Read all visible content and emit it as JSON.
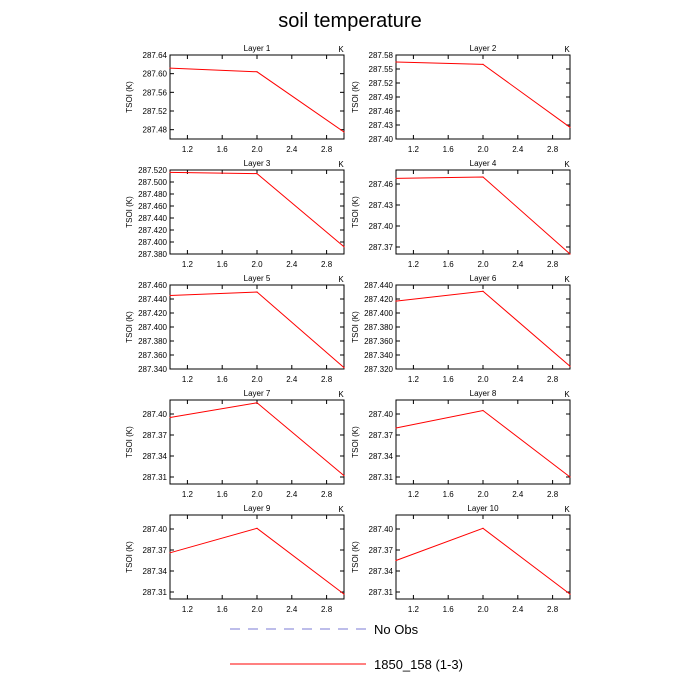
{
  "figure": {
    "title": "soil temperature",
    "colors": {
      "model": "#ff0000",
      "obs": "#7b7bd6",
      "axis": "#000000"
    }
  },
  "legend": {
    "entries": [
      {
        "label": "No Obs",
        "style": "dashed",
        "color": "#7b7bd6"
      },
      {
        "label": "1850_158 (1-3)",
        "style": "solid",
        "color": "#ff0000"
      }
    ]
  },
  "chart_data": [
    {
      "type": "line",
      "title": "Layer 1",
      "ylabel": "TSOI  (K)",
      "unit": "K",
      "x": [
        1,
        2,
        3
      ],
      "xlim": [
        1,
        3
      ],
      "xticks": [
        "1.2",
        "1.6",
        "2.0",
        "2.4",
        "2.8"
      ],
      "ylim": [
        287.46,
        287.64
      ],
      "yticks": [
        "287.48",
        "287.52",
        "287.56",
        "287.60",
        "287.64"
      ],
      "series": [
        {
          "values": [
            287.612,
            287.604,
            287.475
          ]
        }
      ]
    },
    {
      "type": "line",
      "title": "Layer 2",
      "ylabel": "TSOI  (K)",
      "unit": "K",
      "x": [
        1,
        2,
        3
      ],
      "xlim": [
        1,
        3
      ],
      "xticks": [
        "1.2",
        "1.6",
        "2.0",
        "2.4",
        "2.8"
      ],
      "ylim": [
        287.4,
        287.58
      ],
      "yticks": [
        "287.40",
        "287.43",
        "287.46",
        "287.49",
        "287.52",
        "287.55",
        "287.58"
      ],
      "series": [
        {
          "values": [
            287.565,
            287.56,
            287.425
          ]
        }
      ]
    },
    {
      "type": "line",
      "title": "Layer 3",
      "ylabel": "TSOI  (K)",
      "unit": "K",
      "x": [
        1,
        2,
        3
      ],
      "xlim": [
        1,
        3
      ],
      "xticks": [
        "1.2",
        "1.6",
        "2.0",
        "2.4",
        "2.8"
      ],
      "ylim": [
        287.38,
        287.52
      ],
      "yticks": [
        "287.380",
        "287.400",
        "287.420",
        "287.440",
        "287.460",
        "287.480",
        "287.500",
        "287.520"
      ],
      "series": [
        {
          "values": [
            287.516,
            287.514,
            287.392
          ]
        }
      ]
    },
    {
      "type": "line",
      "title": "Layer 4",
      "ylabel": "TSOI  (K)",
      "unit": "K",
      "x": [
        1,
        2,
        3
      ],
      "xlim": [
        1,
        3
      ],
      "xticks": [
        "1.2",
        "1.6",
        "2.0",
        "2.4",
        "2.8"
      ],
      "ylim": [
        287.36,
        287.48
      ],
      "yticks": [
        "287.37",
        "287.40",
        "287.43",
        "287.46"
      ],
      "series": [
        {
          "values": [
            287.468,
            287.47,
            287.36
          ]
        }
      ]
    },
    {
      "type": "line",
      "title": "Layer 5",
      "ylabel": "TSOI  (K)",
      "unit": "K",
      "x": [
        1,
        2,
        3
      ],
      "xlim": [
        1,
        3
      ],
      "xticks": [
        "1.2",
        "1.6",
        "2.0",
        "2.4",
        "2.8"
      ],
      "ylim": [
        287.34,
        287.46
      ],
      "yticks": [
        "287.340",
        "287.360",
        "287.380",
        "287.400",
        "287.420",
        "287.440",
        "287.460"
      ],
      "series": [
        {
          "values": [
            287.445,
            287.45,
            287.342
          ]
        }
      ]
    },
    {
      "type": "line",
      "title": "Layer 6",
      "ylabel": "TSOI  (K)",
      "unit": "K",
      "x": [
        1,
        2,
        3
      ],
      "xlim": [
        1,
        3
      ],
      "xticks": [
        "1.2",
        "1.6",
        "2.0",
        "2.4",
        "2.8"
      ],
      "ylim": [
        287.32,
        287.44
      ],
      "yticks": [
        "287.320",
        "287.340",
        "287.360",
        "287.380",
        "287.400",
        "287.420",
        "287.440"
      ],
      "series": [
        {
          "values": [
            287.417,
            287.431,
            287.324
          ]
        }
      ]
    },
    {
      "type": "line",
      "title": "Layer 7",
      "ylabel": "TSOI  (K)",
      "unit": "K",
      "x": [
        1,
        2,
        3
      ],
      "xlim": [
        1,
        3
      ],
      "xticks": [
        "1.2",
        "1.6",
        "2.0",
        "2.4",
        "2.8"
      ],
      "ylim": [
        287.3,
        287.42
      ],
      "yticks": [
        "287.31",
        "287.34",
        "287.37",
        "287.40"
      ],
      "series": [
        {
          "values": [
            287.395,
            287.416,
            287.312
          ]
        }
      ]
    },
    {
      "type": "line",
      "title": "Layer 8",
      "ylabel": "TSOI  (K)",
      "unit": "K",
      "x": [
        1,
        2,
        3
      ],
      "xlim": [
        1,
        3
      ],
      "xticks": [
        "1.2",
        "1.6",
        "2.0",
        "2.4",
        "2.8"
      ],
      "ylim": [
        287.3,
        287.42
      ],
      "yticks": [
        "287.31",
        "287.34",
        "287.37",
        "287.40"
      ],
      "series": [
        {
          "values": [
            287.38,
            287.405,
            287.31
          ]
        }
      ]
    },
    {
      "type": "line",
      "title": "Layer 9",
      "ylabel": "TSOI  (K)",
      "unit": "K",
      "x": [
        1,
        2,
        3
      ],
      "xlim": [
        1,
        3
      ],
      "xticks": [
        "1.2",
        "1.6",
        "2.0",
        "2.4",
        "2.8"
      ],
      "ylim": [
        287.3,
        287.42
      ],
      "yticks": [
        "287.31",
        "287.34",
        "287.37",
        "287.40"
      ],
      "series": [
        {
          "values": [
            287.366,
            287.401,
            287.307
          ]
        }
      ]
    },
    {
      "type": "line",
      "title": "Layer 10",
      "ylabel": "TSOI  (K)",
      "unit": "K",
      "x": [
        1,
        2,
        3
      ],
      "xlim": [
        1,
        3
      ],
      "xticks": [
        "1.2",
        "1.6",
        "2.0",
        "2.4",
        "2.8"
      ],
      "ylim": [
        287.3,
        287.42
      ],
      "yticks": [
        "287.31",
        "287.34",
        "287.37",
        "287.40"
      ],
      "series": [
        {
          "values": [
            287.355,
            287.401,
            287.307
          ]
        }
      ]
    }
  ]
}
